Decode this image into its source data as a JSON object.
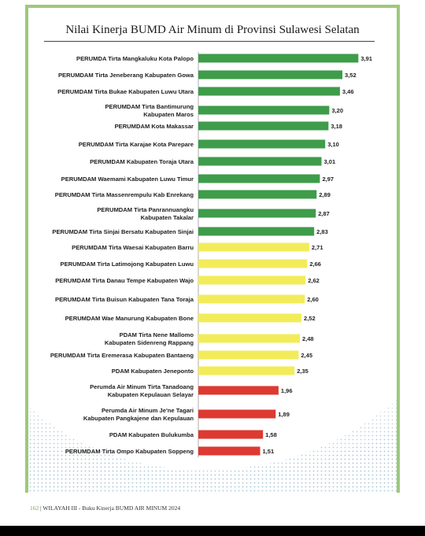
{
  "chart_data": {
    "type": "bar",
    "orientation": "horizontal",
    "title": "Nilai Kinerja BUMD Air Minum di Provinsi Sulawesi Selatan",
    "categories": [
      [
        "PERUMDA Tirta Mangkaluku Kota Palopo"
      ],
      [
        "PERUMDAM Tirta Jeneberang Kabupaten Gowa"
      ],
      [
        "PERUMDAM Tirta Bukae Kabupaten Luwu Utara"
      ],
      [
        "PERUMDAM Tirta Bantimurung",
        "Kabupaten Maros"
      ],
      [
        "PERUMDAM Kota Makassar"
      ],
      [
        "PERUMDAM Tirta Karajae Kota Parepare"
      ],
      [
        "PERUMDAM Kabupaten Toraja Utara"
      ],
      [
        "PERUMDAM Waemami Kabupaten Luwu Timur"
      ],
      [
        "PERUMDAM Tirta Massenrempulu Kab Enrekang"
      ],
      [
        "PERUMDAM Tirta Panrannuangku",
        "Kabupaten Takalar"
      ],
      [
        "PERUMDAM Tirta Sinjai Bersatu Kabupaten Sinjai"
      ],
      [
        "PERUMDAM Tirta Waesai Kabupaten Barru"
      ],
      [
        "PERUMDAM Tirta Latimojong Kabupaten Luwu"
      ],
      [
        "PERUMDAM Tirta Danau Tempe Kabupaten Wajo"
      ],
      [
        "PERUMDAM Tirta Buisun Kabupaten Tana Toraja"
      ],
      [
        "PERUMDAM Wae Manurung Kabupaten Bone"
      ],
      [
        "PDAM Tirta Nene Mallomo",
        "Kabupaten Sidenreng Rappang"
      ],
      [
        "PERUMDAM Tirta Eremerasa Kabupaten Bantaeng"
      ],
      [
        "PDAM Kabupaten Jeneponto"
      ],
      [
        "Perumda Air Minum Tirta Tanadoang",
        "Kabupaten Kepulauan Selayar"
      ],
      [
        "Perumda Air Minum Je'ne Tagari",
        "Kabupaten Pangkajene dan Kepulauan"
      ],
      [
        "PDAM Kabupaten Bulukumba"
      ],
      [
        "PERUMDAM Tirta Ompo Kabupaten Soppeng"
      ]
    ],
    "values": [
      3.91,
      3.52,
      3.46,
      3.2,
      3.18,
      3.1,
      3.01,
      2.97,
      2.89,
      2.87,
      2.83,
      2.71,
      2.66,
      2.62,
      2.6,
      2.52,
      2.48,
      2.45,
      2.35,
      1.96,
      1.89,
      1.58,
      1.51
    ],
    "value_labels": [
      "3,91",
      "3,52",
      "3,46",
      "3,20",
      "3,18",
      "3,10",
      "3,01",
      "2,97",
      "2,89",
      "2,87",
      "2,83",
      "2,71",
      "2,66",
      "2,62",
      "2,60",
      "2,52",
      "2,48",
      "2,45",
      "2,35",
      "1,96",
      "1,89",
      "1,58",
      "1,51"
    ],
    "status": [
      "sehat",
      "sehat",
      "sehat",
      "sehat",
      "sehat",
      "sehat",
      "sehat",
      "sehat",
      "sehat",
      "sehat",
      "sehat",
      "kurang",
      "kurang",
      "kurang",
      "kurang",
      "kurang",
      "kurang",
      "kurang",
      "kurang",
      "sakit",
      "sakit",
      "sakit",
      "sakit"
    ],
    "colors": {
      "sehat": "#3e9c4a",
      "kurang": "#f2ec5a",
      "sakit": "#dd3a31"
    },
    "xlim": [
      0,
      4.0
    ],
    "grid": false,
    "legend": "none"
  },
  "footer": {
    "page_number": "162",
    "text": "| WILAYAH III - Buku Kinerja BUMD AIR MINUM 2024"
  },
  "colors": {
    "frame": "#9dc97a",
    "bottom_bar": "#000000"
  }
}
